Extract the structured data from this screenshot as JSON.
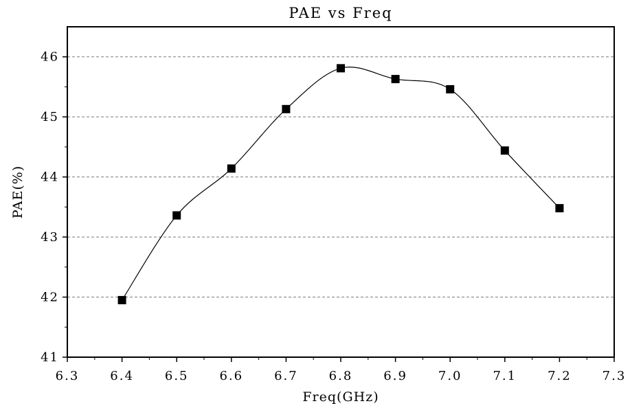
{
  "chart_data": {
    "type": "line",
    "title": "PAE vs Freq",
    "xlabel": "Freq(GHz)",
    "ylabel": "PAE(%)",
    "xlim": [
      6.3,
      7.3
    ],
    "ylim": [
      41,
      46.5
    ],
    "x_ticks": [
      "6.3",
      "6.4",
      "6.5",
      "6.6",
      "6.7",
      "6.8",
      "6.9",
      "7.0",
      "7.1",
      "7.2",
      "7.3"
    ],
    "y_ticks": [
      "41",
      "42",
      "43",
      "44",
      "45",
      "46"
    ],
    "grid": "horizontal-dashed",
    "series": [
      {
        "marker": "square",
        "color": "#000000",
        "x": [
          6.4,
          6.5,
          6.6,
          6.7,
          6.8,
          6.9,
          7.0,
          7.1,
          7.2
        ],
        "y": [
          41.95,
          43.36,
          44.14,
          45.13,
          45.81,
          45.63,
          45.46,
          44.44,
          43.48
        ]
      }
    ]
  }
}
